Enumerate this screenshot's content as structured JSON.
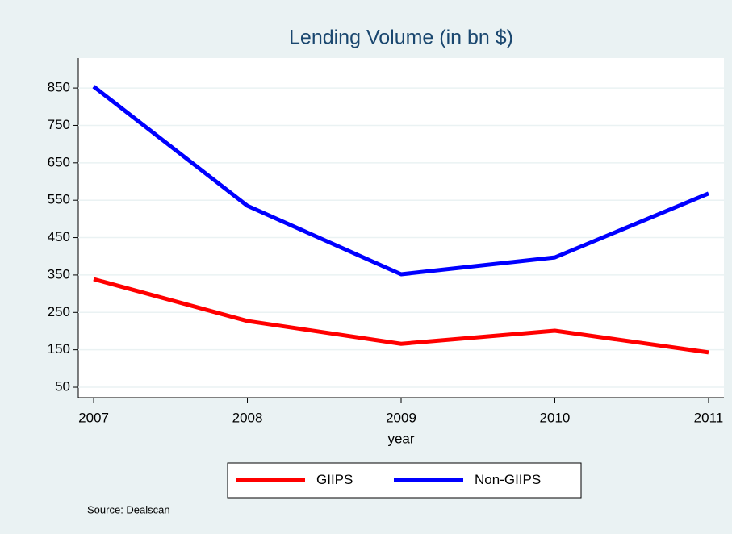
{
  "chart_data": {
    "type": "line",
    "title": "Lending Volume (in bn $)",
    "x": [
      2007,
      2008,
      2009,
      2010,
      2011
    ],
    "x_label": "year",
    "series": [
      {
        "name": "GIIPS",
        "color": "#ff0000",
        "values": [
          339,
          227,
          166,
          201,
          143
        ]
      },
      {
        "name": "Non-GIIPS",
        "color": "#0000ff",
        "values": [
          854,
          535,
          352,
          397,
          568
        ]
      }
    ],
    "xlim": [
      2006.9,
      2011.1
    ],
    "xticks": [
      2007,
      2008,
      2009,
      2010,
      2011
    ],
    "ylim": [
      22,
      930
    ],
    "yticks": [
      50,
      150,
      250,
      350,
      450,
      550,
      650,
      750,
      850
    ],
    "grid": true,
    "legend": "bottom",
    "note": "Source: Dealscan"
  }
}
